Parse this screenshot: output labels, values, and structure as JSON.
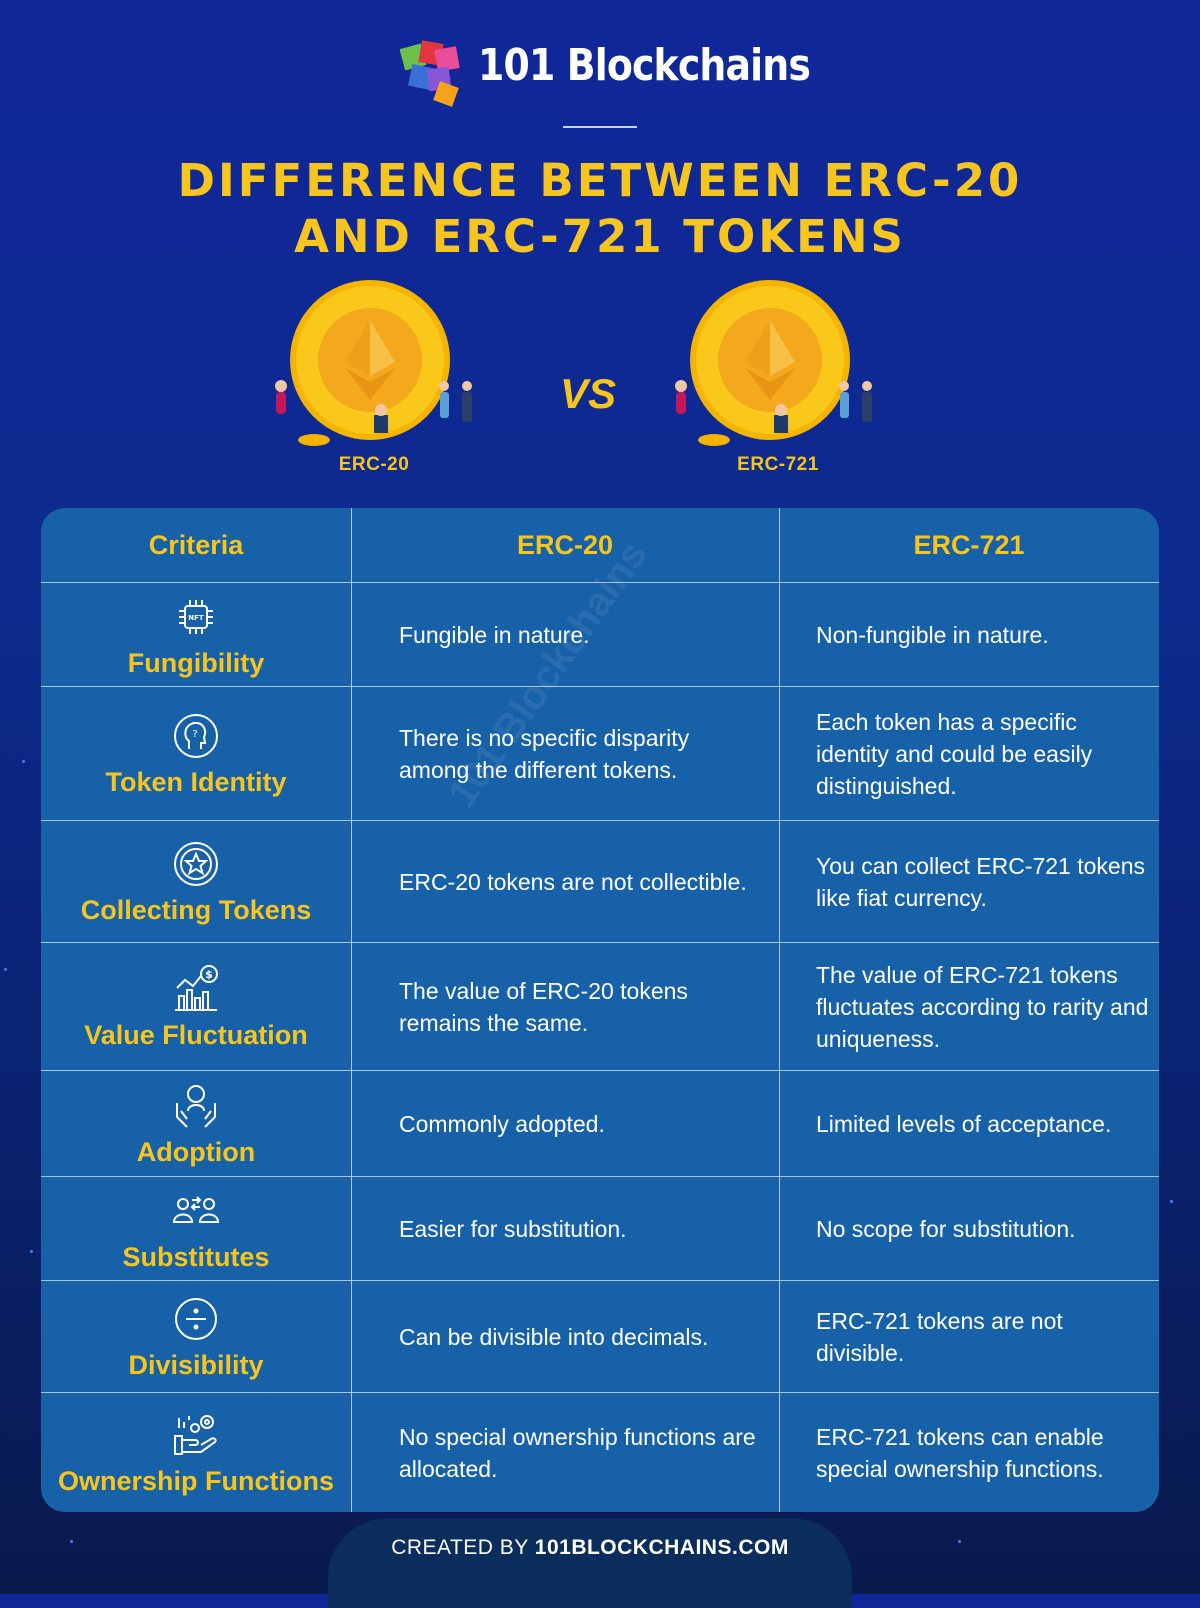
{
  "brand": {
    "name": "101 Blockchains"
  },
  "title": {
    "line1": "DIFFERENCE BETWEEN ERC-20",
    "line2": "AND ERC-721 TOKENS"
  },
  "comparison": {
    "left_label": "ERC-20",
    "vs": "VS",
    "right_label": "ERC-721"
  },
  "table": {
    "headers": [
      "Criteria",
      "ERC-20",
      "ERC-721"
    ],
    "rows": [
      {
        "criterion": "Fungibility",
        "icon": "nft-chip-icon",
        "erc20": "Fungible in nature.",
        "erc721": "Non-fungible in nature."
      },
      {
        "criterion": "Token Identity",
        "icon": "identity-head-icon",
        "erc20": "There is no specific disparity among the different tokens.",
        "erc721": "Each token has a specific identity and could be easily distinguished."
      },
      {
        "criterion": "Collecting Tokens",
        "icon": "star-badge-icon",
        "erc20": "ERC-20 tokens are not collectible.",
        "erc721": "You can collect ERC-721 tokens like fiat currency."
      },
      {
        "criterion": "Value Fluctuation",
        "icon": "bar-chart-dollar-icon",
        "erc20": "The value of ERC-20 tokens remains the same.",
        "erc721": "The value of ERC-721 tokens fluctuates according to rarity and uniqueness."
      },
      {
        "criterion": "Adoption",
        "icon": "hands-person-icon",
        "erc20": "Commonly adopted.",
        "erc721": "Limited levels of acceptance."
      },
      {
        "criterion": "Substitutes",
        "icon": "people-swap-icon",
        "erc20": "Easier for substitution.",
        "erc721": "No scope for substitution."
      },
      {
        "criterion": "Divisibility",
        "icon": "divide-icon",
        "erc20": "Can be divisible into decimals.",
        "erc721": "ERC-721 tokens are not divisible."
      },
      {
        "criterion": "Ownership Functions",
        "icon": "hand-gears-icon",
        "erc20": "No special ownership functions are allocated.",
        "erc721": "ERC-721 tokens can enable special ownership functions."
      }
    ]
  },
  "watermark": "101 Blockchains",
  "footer": {
    "prefix": "CREATED BY ",
    "site": "101BLOCKCHAINS.COM"
  },
  "colors": {
    "accent": "#f6c51e",
    "table_bg": "#1761a8",
    "background": "#10279a"
  }
}
